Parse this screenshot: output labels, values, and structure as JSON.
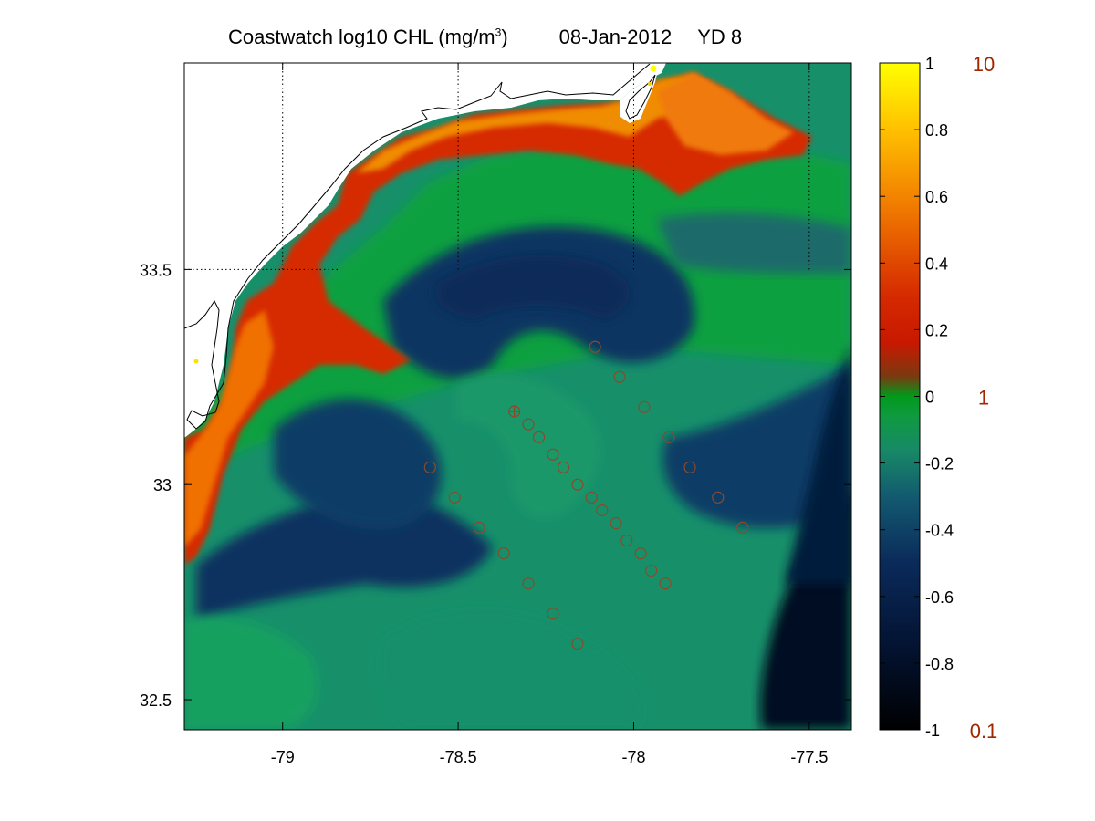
{
  "title": {
    "main": "Coastwatch  log10  CHL (mg/m",
    "sup": "3",
    "close": ")",
    "date": "08-Jan-2012",
    "yearday": "YD 8"
  },
  "map": {
    "lon_range": [
      -79.28,
      -77.38
    ],
    "lat_range": [
      32.43,
      33.98
    ],
    "x_ticks": [
      {
        "value": -79,
        "label": "-79"
      },
      {
        "value": -78.5,
        "label": "-78.5"
      },
      {
        "value": -78,
        "label": "-78"
      },
      {
        "value": -77.5,
        "label": "-77.5"
      }
    ],
    "y_ticks": [
      {
        "value": 33.5,
        "label": "33.5"
      },
      {
        "value": 33,
        "label": "33"
      },
      {
        "value": 32.5,
        "label": "32.5"
      }
    ],
    "stations": [
      [
        -78.11,
        33.32
      ],
      [
        -78.04,
        33.25
      ],
      [
        -77.97,
        33.18
      ],
      [
        -77.9,
        33.11
      ],
      [
        -77.84,
        33.04
      ],
      [
        -77.76,
        32.97
      ],
      [
        -77.69,
        32.9
      ],
      [
        -78.34,
        33.17
      ],
      [
        -78.3,
        33.14
      ],
      [
        -78.27,
        33.11
      ],
      [
        -78.23,
        33.07
      ],
      [
        -78.2,
        33.04
      ],
      [
        -78.16,
        33.0
      ],
      [
        -78.12,
        32.97
      ],
      [
        -78.09,
        32.94
      ],
      [
        -78.05,
        32.91
      ],
      [
        -78.02,
        32.87
      ],
      [
        -77.98,
        32.84
      ],
      [
        -77.95,
        32.8
      ],
      [
        -77.91,
        32.77
      ],
      [
        -78.58,
        33.04
      ],
      [
        -78.51,
        32.97
      ],
      [
        -78.44,
        32.9
      ],
      [
        -78.37,
        32.84
      ],
      [
        -78.3,
        32.77
      ],
      [
        -78.23,
        32.7
      ],
      [
        -78.16,
        32.63
      ]
    ]
  },
  "colorbar": {
    "range": [
      -1,
      1
    ],
    "ticks": [
      {
        "value": 1,
        "label": "1"
      },
      {
        "value": 0.8,
        "label": "0.8"
      },
      {
        "value": 0.6,
        "label": "0.6"
      },
      {
        "value": 0.4,
        "label": "0.4"
      },
      {
        "value": 0.2,
        "label": "0.2"
      },
      {
        "value": 0,
        "label": "0"
      },
      {
        "value": -0.2,
        "label": "-0.2"
      },
      {
        "value": -0.4,
        "label": "-0.4"
      },
      {
        "value": -0.6,
        "label": "-0.6"
      },
      {
        "value": -0.8,
        "label": "-0.8"
      },
      {
        "value": -1,
        "label": "-1"
      }
    ],
    "linear_labels": [
      {
        "value": 1,
        "label": "10"
      },
      {
        "value": 0,
        "label": "1"
      },
      {
        "value": -1,
        "label": "0.1"
      }
    ],
    "colors": {
      "low": "#000000",
      "navy": "#0a2a5a",
      "teal": "#178a66",
      "green": "#009a1a",
      "red": "#d01500",
      "orange": "#f07800",
      "high": "#ffff00",
      "linear_label_color": "#a02800"
    }
  }
}
